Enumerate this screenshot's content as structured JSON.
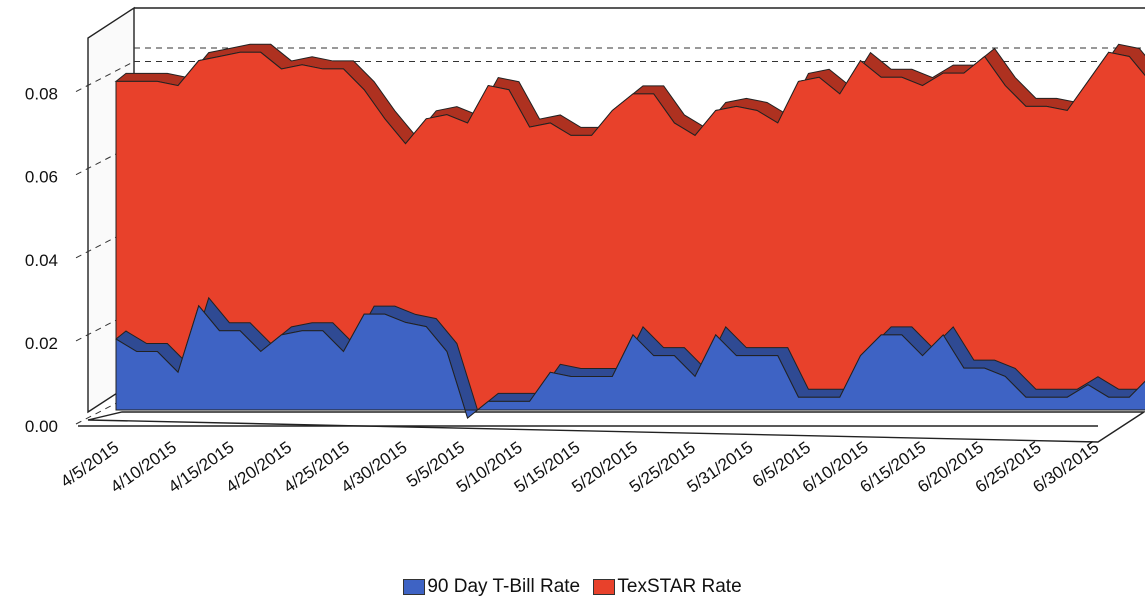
{
  "chart_data": {
    "type": "area",
    "x_labels": [
      "4/5/2015",
      "4/10/2015",
      "4/15/2015",
      "4/20/2015",
      "4/25/2015",
      "4/30/2015",
      "5/5/2015",
      "5/10/2015",
      "5/15/2015",
      "5/20/2015",
      "5/25/2015",
      "5/31/2015",
      "6/5/2015",
      "6/10/2015",
      "6/15/2015",
      "6/20/2015",
      "6/25/2015",
      "6/30/2015"
    ],
    "y_ticks": [
      "0.00",
      "0.02",
      "0.04",
      "0.06",
      "0.08"
    ],
    "ylim": [
      0,
      0.09
    ],
    "grid": "dashed horizontal",
    "legend_position": "bottom",
    "series": [
      {
        "name": "TexSTAR Rate",
        "color": "#e8412b",
        "values": [
          0.081,
          0.081,
          0.081,
          0.08,
          0.086,
          0.087,
          0.088,
          0.088,
          0.084,
          0.085,
          0.084,
          0.084,
          0.079,
          0.072,
          0.066,
          0.072,
          0.073,
          0.071,
          0.08,
          0.079,
          0.07,
          0.071,
          0.068,
          0.068,
          0.074,
          0.078,
          0.078,
          0.071,
          0.068,
          0.074,
          0.075,
          0.074,
          0.071,
          0.081,
          0.082,
          0.078,
          0.086,
          0.082,
          0.082,
          0.08,
          0.083,
          0.083,
          0.087,
          0.08,
          0.075,
          0.075,
          0.074,
          0.081,
          0.088,
          0.087,
          0.081
        ]
      },
      {
        "name": "90 Day T-Bill Rate",
        "color": "#3e63c4",
        "values": [
          0.019,
          0.016,
          0.016,
          0.011,
          0.027,
          0.021,
          0.021,
          0.016,
          0.02,
          0.021,
          0.021,
          0.016,
          0.025,
          0.025,
          0.023,
          0.022,
          0.016,
          0.0,
          0.004,
          0.004,
          0.004,
          0.011,
          0.01,
          0.01,
          0.01,
          0.02,
          0.015,
          0.015,
          0.01,
          0.02,
          0.015,
          0.015,
          0.015,
          0.005,
          0.005,
          0.005,
          0.015,
          0.02,
          0.02,
          0.015,
          0.02,
          0.012,
          0.012,
          0.01,
          0.005,
          0.005,
          0.005,
          0.008,
          0.005,
          0.005,
          0.01
        ]
      }
    ]
  }
}
